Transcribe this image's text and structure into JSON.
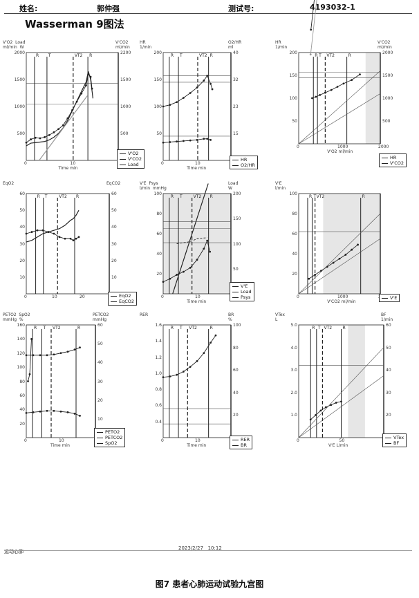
{
  "header": {
    "name_label": "姓名:",
    "patient_name": "郭仲强",
    "test_no_label": "测试号:",
    "test_no": "4193032-1"
  },
  "title": "Wasserman  9图法",
  "footer": {
    "left_text": "运动心肺",
    "date": "2023/2/27",
    "time": "10:12"
  },
  "caption": "图7  患者心肺运动试验九宫图",
  "colors": {
    "line": "#222222",
    "grid": "#555555",
    "shade": "#e6e6e6",
    "light_series": "#999999"
  },
  "chart_data": [
    {
      "id": "p1",
      "type": "line",
      "left_axis_title": [
        "V'O2  Load",
        "ml/min  W"
      ],
      "right_axis_title": [
        "V'CO2",
        "ml/min"
      ],
      "xlabel": "Time  min",
      "xlim": [
        0,
        20
      ],
      "ylim": [
        0,
        2000
      ],
      "y2lim": [
        0,
        2200
      ],
      "xticks": [
        "0",
        "10"
      ],
      "yticks": [
        "500",
        "1000",
        "1500",
        "2000"
      ],
      "y2ticks": [
        "500",
        "1000",
        "1500",
        "2200"
      ],
      "markers": [
        {
          "label": "R",
          "x": 1.8
        },
        {
          "label": "T",
          "x": 4.5
        },
        {
          "label": "VT2",
          "x": 10.2
        },
        {
          "label": "R",
          "x": 13.4
        }
      ],
      "hlines_left": [
        1430,
        1040
      ],
      "series": [
        {
          "name": "V'O2",
          "style": "dots",
          "x": [
            0,
            1,
            2,
            3,
            4,
            5,
            6,
            7,
            8,
            9,
            10,
            11,
            12,
            13,
            13.5,
            14,
            14.3
          ],
          "y": [
            330,
            390,
            420,
            410,
            430,
            470,
            520,
            580,
            650,
            780,
            930,
            1090,
            1240,
            1390,
            1600,
            1550,
            1330
          ]
        },
        {
          "name": "V'CO2",
          "style": "line",
          "x": [
            0,
            1,
            2,
            3,
            4,
            5,
            6,
            7,
            8,
            9,
            10,
            11,
            12,
            13,
            13.5,
            14,
            14.5
          ],
          "y": [
            270,
            320,
            330,
            340,
            350,
            380,
            430,
            500,
            600,
            740,
            920,
            1100,
            1280,
            1450,
            1650,
            1500,
            1150
          ]
        },
        {
          "name": "Load",
          "style": "line",
          "x": [
            2.8,
            13.3
          ],
          "y": [
            0,
            1200
          ]
        }
      ],
      "legend": [
        "V'O2",
        "V'CO2",
        "Load"
      ]
    },
    {
      "id": "p2",
      "type": "line",
      "left_axis_title": [
        "HR",
        "1/min"
      ],
      "right_axis_title": [
        "O2/HR",
        "ml"
      ],
      "xlabel": "Time  min",
      "xlim": [
        0,
        20
      ],
      "ylim": [
        0,
        200
      ],
      "y2lim": [
        0,
        40
      ],
      "xticks": [
        "0",
        "10"
      ],
      "yticks": [
        "50",
        "100",
        "150",
        "200"
      ],
      "y2ticks": [
        "15",
        "23",
        "32",
        "40"
      ],
      "markers": [
        {
          "label": "R",
          "x": 1.8
        },
        {
          "label": "T",
          "x": 4.5
        },
        {
          "label": "VT2",
          "x": 10.2
        },
        {
          "label": "R",
          "x": 13.4
        }
      ],
      "hlines_left": [
        157,
        145,
        45
      ],
      "series": [
        {
          "name": "HR",
          "style": "dots",
          "x": [
            0,
            2,
            4,
            6,
            8,
            10,
            12,
            13,
            14,
            14.5
          ],
          "y": [
            100,
            103,
            108,
            116,
            125,
            135,
            148,
            157,
            142,
            132
          ]
        },
        {
          "name": "O2/HR",
          "style": "dots",
          "x": [
            0,
            2,
            4,
            6,
            8,
            10,
            12,
            13,
            14
          ],
          "y": [
            33,
            34,
            35,
            36,
            37,
            38,
            40,
            40,
            38
          ]
        }
      ],
      "legend": [
        "HR",
        "O2/HR"
      ]
    },
    {
      "id": "p3",
      "type": "scatter",
      "left_axis_title": [
        "HR",
        "1/min"
      ],
      "right_axis_title": [
        "V'CO2",
        "ml/min"
      ],
      "xlabel": "V'O2  ml/min",
      "xlim": [
        0,
        2000
      ],
      "ylim": [
        0,
        200
      ],
      "y2lim": [
        0,
        2000
      ],
      "xticks": [
        "0",
        "1000",
        "2000"
      ],
      "yticks": [
        "50",
        "100",
        "150",
        "200"
      ],
      "y2ticks": [
        "500",
        "1000",
        "1500",
        "2000"
      ],
      "markers": [
        {
          "label": "R",
          "x": 360
        },
        {
          "label": "T",
          "x": 460
        },
        {
          "label": "VT2",
          "x": 650
        },
        {
          "label": "R",
          "x": 1180
        }
      ],
      "hlines_left": [
        157,
        145
      ],
      "series": [
        {
          "name": "HR",
          "style": "dots",
          "x": [
            330,
            420,
            520,
            650,
            800,
            950,
            1100,
            1300,
            1500
          ],
          "y": [
            100,
            103,
            107,
            112,
            118,
            125,
            132,
            140,
            152
          ]
        },
        {
          "name": "V'CO2",
          "style": "dots",
          "x": [
            300,
            400,
            500,
            600,
            700,
            800,
            900,
            1000,
            1100,
            1200,
            1300
          ],
          "y": [
            250,
            330,
            400,
            500,
            640,
            770,
            900,
            1050,
            1200,
            1350,
            1480
          ]
        }
      ],
      "legend": [
        "HR",
        "V'CO2"
      ]
    },
    {
      "id": "p4",
      "type": "line",
      "left_axis_title": [
        "EqO2"
      ],
      "right_axis_title": [
        "EqCO2"
      ],
      "xlabel": "",
      "xlim": [
        0,
        30
      ],
      "ylim": [
        0,
        60
      ],
      "y2lim": [
        0,
        60
      ],
      "xticks": [
        "0",
        "10",
        "20"
      ],
      "yticks": [
        "10",
        "20",
        "30",
        "40",
        "50",
        "60"
      ],
      "y2ticks": [
        "10",
        "20",
        "30",
        "40",
        "50",
        "60"
      ],
      "markers": [
        {
          "label": "R",
          "x": 3.4
        },
        {
          "label": "T",
          "x": 6.2
        },
        {
          "label": "VT2",
          "x": 11.3
        },
        {
          "label": "R",
          "x": 17.5
        }
      ],
      "hlines_left": [],
      "series": [
        {
          "name": "EqO2",
          "style": "line",
          "x": [
            0,
            2,
            4,
            6,
            8,
            10,
            12,
            14,
            16,
            17,
            18,
            19
          ],
          "y": [
            31,
            32,
            34,
            36,
            37,
            38,
            39,
            41,
            44,
            45,
            47,
            50
          ]
        },
        {
          "name": "EqCO2",
          "style": "dots",
          "x": [
            0,
            2,
            4,
            6,
            8,
            10,
            12,
            14,
            16,
            17,
            18,
            19
          ],
          "y": [
            36,
            37,
            38,
            38,
            37,
            36,
            34,
            33,
            33,
            32,
            33,
            34
          ]
        }
      ],
      "legend": [
        "EqO2",
        "EqCO2"
      ]
    },
    {
      "id": "p5",
      "type": "line",
      "left_axis_title": [
        "V'E  Psys",
        "l/min  mmHg"
      ],
      "right_axis_title": [
        "Load",
        "W"
      ],
      "xlabel": "Time  min",
      "xlim": [
        0,
        20
      ],
      "ylim": [
        0,
        100
      ],
      "y2lim": [
        0,
        200
      ],
      "xticks": [
        "0",
        "10"
      ],
      "yticks": [
        "20",
        "40",
        "60",
        "80",
        "100"
      ],
      "y2ticks": [
        "50",
        "100",
        "150",
        "200"
      ],
      "markers": [
        {
          "label": "R",
          "x": 1.8
        },
        {
          "label": "T",
          "x": 4.5
        },
        {
          "label": "VT2",
          "x": 8.5
        },
        {
          "label": "R",
          "x": 13.4
        }
      ],
      "hlines_left": [
        72,
        65,
        51
      ],
      "series": [
        {
          "name": "V'E",
          "style": "dots",
          "x": [
            0,
            2,
            4,
            6,
            8,
            10,
            12,
            13,
            13.8
          ],
          "y": [
            12,
            15,
            19,
            22,
            26,
            34,
            45,
            53,
            42
          ]
        },
        {
          "name": "Load",
          "style": "line",
          "x": [
            2.8,
            13.3
          ],
          "y": [
            0,
            110
          ]
        },
        {
          "name": "Psys",
          "style": "dashes",
          "x": [
            4,
            8,
            10,
            13
          ],
          "y": [
            50,
            52,
            55,
            56
          ]
        }
      ],
      "legend": [
        "V'E",
        "Load",
        "Psys"
      ]
    },
    {
      "id": "p6",
      "type": "scatter",
      "left_axis_title": [
        "V'E",
        "l/min"
      ],
      "right_axis_title": [],
      "xlabel": "V'CO2  ml/min",
      "xlim": [
        0,
        2000
      ],
      "ylim": [
        0,
        100
      ],
      "y2lim": [
        0,
        100
      ],
      "xticks": [
        "0",
        "1000",
        "2000"
      ],
      "yticks": [
        "20",
        "40",
        "60",
        "80",
        "100"
      ],
      "y2ticks": [],
      "markers": [
        {
          "label": "R",
          "x": 220
        },
        {
          "label": "T",
          "x": 330
        },
        {
          "label": "VT2",
          "x": 400
        },
        {
          "label": "R",
          "x": 1520
        }
      ],
      "hlines_left": [
        62
      ],
      "series": [
        {
          "name": "V'E",
          "style": "dots",
          "x": [
            250,
            400,
            550,
            700,
            850,
            1000,
            1150,
            1300,
            1450
          ],
          "y": [
            15,
            19,
            23,
            27,
            31,
            35,
            39,
            44,
            49
          ]
        }
      ],
      "legend": [
        "V'E"
      ]
    },
    {
      "id": "p7",
      "type": "line",
      "left_axis_title": [
        "PETO2  SpO2",
        "mmHg  %"
      ],
      "right_axis_title": [
        "PETCO2",
        "mmHg"
      ],
      "xlabel": "Time  min",
      "xlim": [
        0,
        20
      ],
      "ylim": [
        0,
        160
      ],
      "y2lim": [
        0,
        60
      ],
      "xticks": [
        "0",
        "10"
      ],
      "yticks": [
        "20",
        "40",
        "60",
        "80",
        "100",
        "120",
        "140",
        "160"
      ],
      "y2ticks": [
        "10",
        "20",
        "30",
        "40",
        "50",
        "60"
      ],
      "markers": [
        {
          "label": "R",
          "x": 1.8
        },
        {
          "label": "T",
          "x": 4.5
        },
        {
          "label": "VT2",
          "x": 7.2
        },
        {
          "label": "R",
          "x": 14.4
        }
      ],
      "hlines_left": [],
      "series": [
        {
          "name": "PETO2",
          "style": "dots",
          "x": [
            0,
            2,
            4,
            6,
            8,
            10,
            12,
            14,
            15.5
          ],
          "y": [
            117,
            117,
            117,
            117,
            118,
            120,
            122,
            125,
            128
          ]
        },
        {
          "name": "PETCO2",
          "style": "dots",
          "x": [
            0,
            2,
            4,
            6,
            8,
            10,
            12,
            14,
            15.5
          ],
          "y": [
            35,
            36,
            37,
            38,
            38,
            37,
            36,
            34,
            31
          ]
        },
        {
          "name": "SpO2",
          "style": "dots",
          "x": [
            0.5,
            1,
            1.5
          ],
          "y": [
            80,
            90,
            140
          ]
        }
      ],
      "legend": [
        "PETO2",
        "PETCO2",
        "SpO2"
      ]
    },
    {
      "id": "p8",
      "type": "line",
      "left_axis_title": [
        "RER"
      ],
      "right_axis_title": [
        "BR",
        "%"
      ],
      "xlabel": "Time  min",
      "xlim": [
        0,
        20
      ],
      "ylim": [
        0.2,
        1.6
      ],
      "y2lim": [
        0,
        100
      ],
      "xticks": [
        "0",
        "10"
      ],
      "yticks": [
        "0.4",
        "0.6",
        "0.8",
        "1.0",
        "1.2",
        "1.4",
        "1.6"
      ],
      "y2ticks": [
        "20",
        "40",
        "60",
        "80",
        "100"
      ],
      "markers": [
        {
          "label": "R",
          "x": 1.8
        },
        {
          "label": "T",
          "x": 4.5
        },
        {
          "label": "VT2",
          "x": 7.2
        },
        {
          "label": "R",
          "x": 13.4
        }
      ],
      "hlines_left": [
        0.56,
        0.37
      ],
      "series": [
        {
          "name": "RER",
          "style": "dots",
          "x": [
            0,
            2,
            4,
            6,
            8,
            10,
            12,
            14,
            15.5
          ],
          "y": [
            0.95,
            0.96,
            0.98,
            1.02,
            1.08,
            1.15,
            1.25,
            1.38,
            1.47
          ]
        },
        {
          "name": "BR",
          "style": "dots",
          "x": [
            0,
            2,
            4,
            6,
            8,
            10,
            12,
            13,
            14,
            15
          ],
          "y": [
            78,
            77,
            76,
            73,
            69,
            63,
            56,
            50,
            55,
            60
          ]
        }
      ],
      "legend": [
        "RER",
        "BR"
      ]
    },
    {
      "id": "p9",
      "type": "scatter",
      "left_axis_title": [
        "VTex",
        "L"
      ],
      "right_axis_title": [
        "BF",
        "1/min"
      ],
      "xlabel": "V'E  L/min",
      "xlim": [
        0,
        100
      ],
      "ylim": [
        0,
        5.0
      ],
      "y2lim": [
        0,
        60
      ],
      "xticks": [
        "0",
        "50",
        "100"
      ],
      "yticks": [
        "1.0",
        "2.0",
        "3.0",
        "4.0",
        "5.0"
      ],
      "y2ticks": [
        "20",
        "30",
        "40",
        "50",
        "60"
      ],
      "markers": [
        {
          "label": "R",
          "x": 14
        },
        {
          "label": "T",
          "x": 21
        },
        {
          "label": "VT2",
          "x": 28
        },
        {
          "label": "R",
          "x": 50
        }
      ],
      "hlines_left": [
        3.2
      ],
      "series": [
        {
          "name": "VTex",
          "style": "dots",
          "x": [
            14,
            20,
            26,
            32,
            38,
            44,
            50
          ],
          "y": [
            0.8,
            1.0,
            1.2,
            1.35,
            1.45,
            1.55,
            1.6
          ]
        },
        {
          "name": "BF",
          "style": "dots",
          "x": [
            14,
            20,
            26,
            32,
            38,
            44,
            50
          ],
          "y": [
            17,
            19,
            21,
            22,
            23,
            24,
            25
          ]
        }
      ],
      "legend": [
        "VTex",
        "BF"
      ]
    }
  ]
}
